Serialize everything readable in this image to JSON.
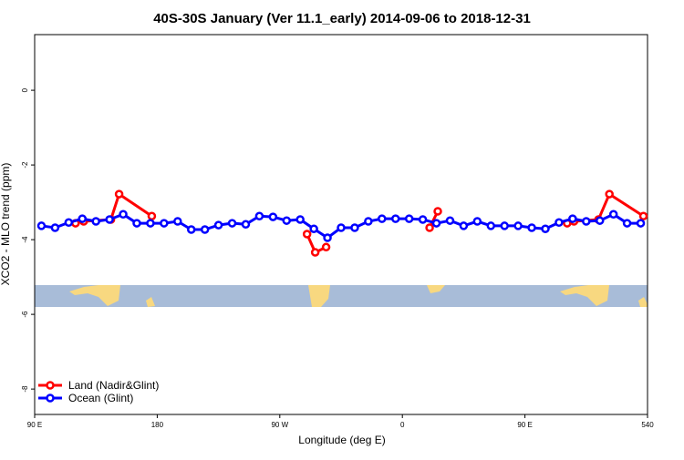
{
  "chart_data": {
    "type": "line",
    "title": "40S-30S January (Ver 11.1_early)   2014-09-06 to 2018-12-31",
    "x_label": "Longitude (deg E)",
    "y_label": "XCO2 - MLO trend (ppm)",
    "xlim": [
      90,
      540
    ],
    "xticks": [
      {
        "value": 90,
        "label": "90 E"
      },
      180,
      {
        "value": 270,
        "label": "90 W"
      },
      {
        "value": 360,
        "label": "0"
      },
      {
        "value": 450,
        "label": "90 E"
      },
      540
    ],
    "ylim": [
      -8.68,
      1.49
    ],
    "yticks": [
      0,
      -2,
      -4,
      -6,
      -8
    ],
    "legend": "bottom-left",
    "series": [
      {
        "name": "Land (Nadir&Glint)",
        "color": "#ff0000",
        "x": [
          120,
          126,
          146,
          152,
          176,
          230,
          290,
          296,
          304,
          340,
          380,
          386,
          430,
          481,
          486,
          504,
          512,
          537
        ],
        "values": [
          -3.56,
          -3.51,
          -3.46,
          -2.78,
          -3.37,
          null,
          -3.85,
          -4.34,
          -4.2,
          null,
          -3.68,
          -3.24,
          null,
          -3.56,
          -3.51,
          -3.46,
          -2.78,
          -3.37
        ]
      },
      {
        "name": "Ocean (Glint)",
        "color": "#0000ff",
        "x": [
          95,
          105,
          115,
          125,
          135,
          145,
          155,
          165,
          175,
          185,
          195,
          205,
          215,
          225,
          235,
          245,
          255,
          265,
          275,
          285,
          295,
          305,
          315,
          325,
          335,
          345,
          355,
          365,
          375,
          385,
          395,
          405,
          415,
          425,
          435,
          445,
          455,
          465,
          475,
          485,
          495,
          505,
          515,
          525,
          535
        ],
        "values": [
          -3.63,
          -3.68,
          -3.54,
          -3.44,
          -3.51,
          -3.46,
          -3.32,
          -3.56,
          -3.56,
          -3.56,
          -3.51,
          -3.73,
          -3.73,
          -3.61,
          -3.56,
          -3.59,
          -3.37,
          -3.39,
          -3.49,
          -3.46,
          -3.71,
          -3.95,
          -3.68,
          -3.68,
          -3.51,
          -3.44,
          -3.44,
          -3.44,
          -3.46,
          -3.56,
          -3.49,
          -3.63,
          -3.51,
          -3.63,
          -3.63,
          -3.63,
          -3.68,
          -3.71,
          -3.54,
          -3.44,
          -3.51,
          -3.49,
          -3.32,
          -3.56,
          -3.56
        ]
      }
    ]
  }
}
